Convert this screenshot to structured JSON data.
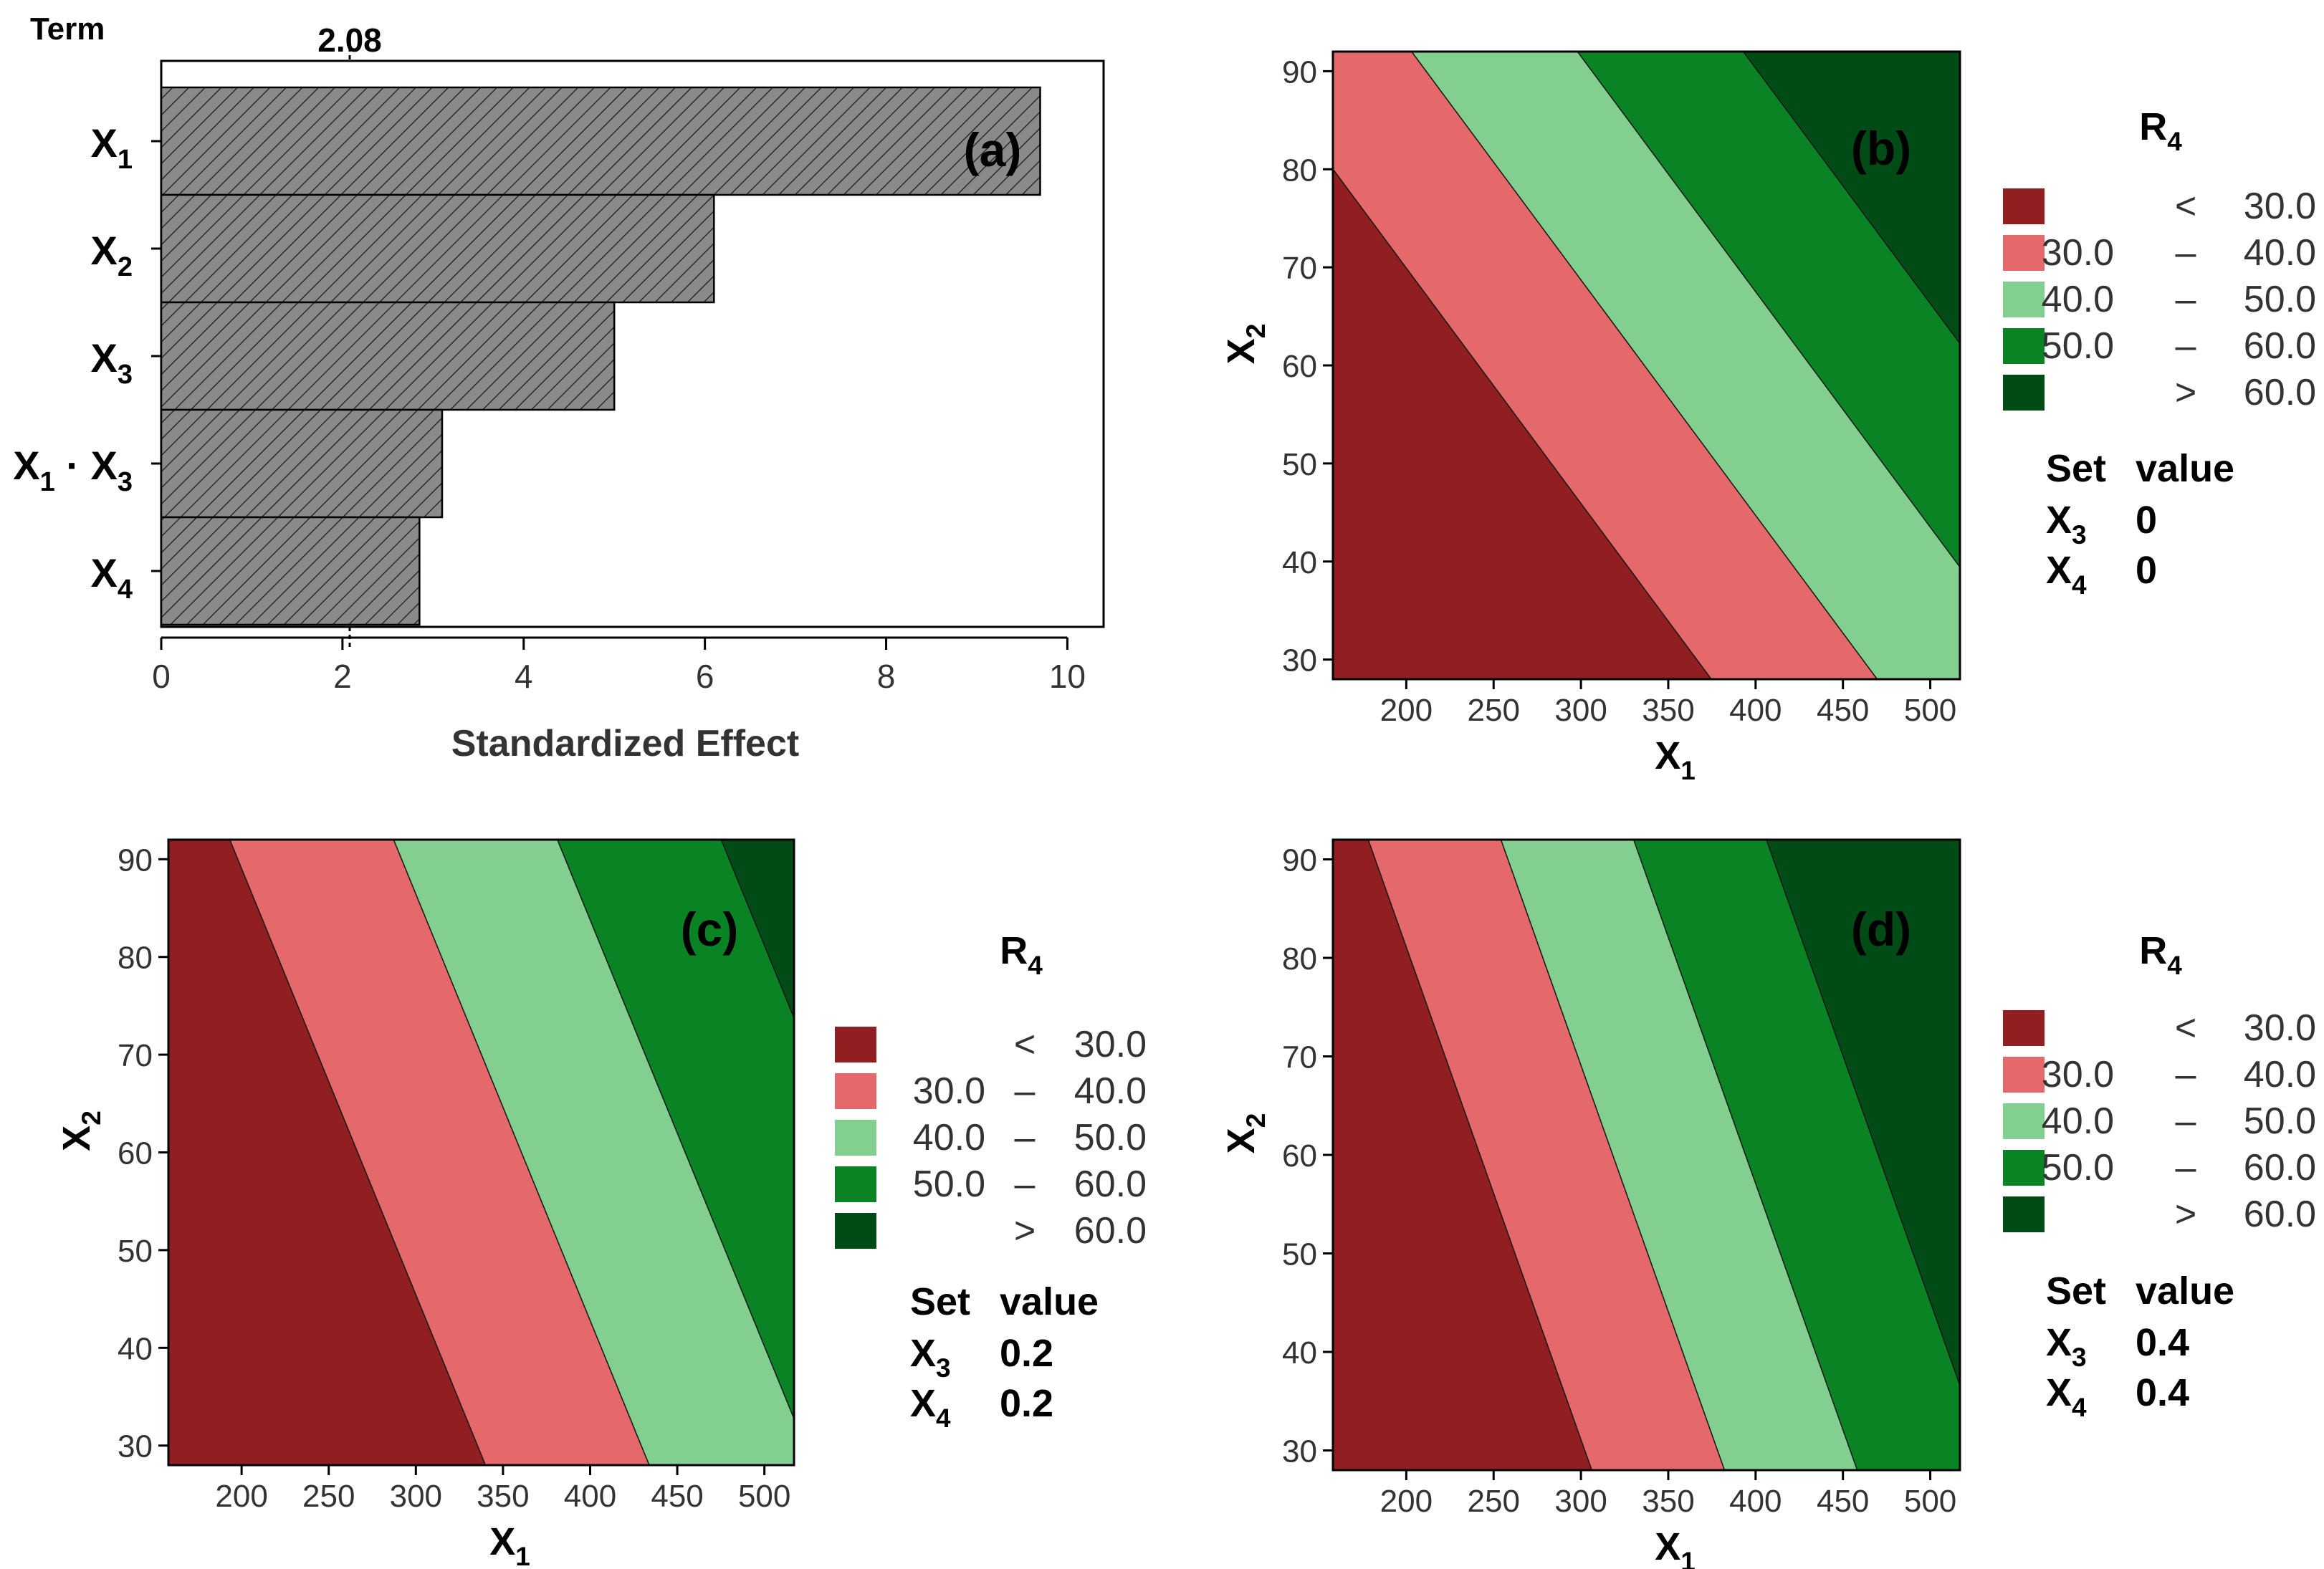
{
  "colors": {
    "lt30": "#911e21",
    "r30_40": "#e5696b",
    "r40_50": "#82cf8f",
    "r50_60": "#0a8324",
    "gt60": "#004b16",
    "bar_fill": "#8a8a8a",
    "axis_text": "#333333"
  },
  "chart_data": [
    {
      "type": "bar",
      "orientation": "horizontal",
      "panel": "(a)",
      "y_title": "Term",
      "xlabel": "Standardized Effect",
      "reference_line": 2.08,
      "reference_label": "2.08",
      "categories": [
        {
          "main": "X",
          "sub": "1"
        },
        {
          "main": "X",
          "sub": "2"
        },
        {
          "main": "X",
          "sub": "3"
        },
        {
          "main": "X",
          "sub": "1",
          "mid": " · X",
          "sub2": "3"
        },
        {
          "main": "X",
          "sub": "4"
        }
      ],
      "values": [
        9.7,
        6.1,
        5.0,
        3.1,
        2.85
      ],
      "xlim": [
        0,
        10.4
      ],
      "xticks": [
        0,
        2,
        4,
        6,
        8,
        10
      ]
    },
    {
      "type": "contour",
      "panel": "(b)",
      "xlabel": {
        "main": "X",
        "sub": "1"
      },
      "ylabel": {
        "main": "X",
        "sub": "2"
      },
      "xlim": [
        158,
        517
      ],
      "ylim": [
        28,
        92
      ],
      "xticks": [
        200,
        250,
        300,
        350,
        400,
        450,
        500
      ],
      "yticks": [
        30,
        40,
        50,
        60,
        70,
        80,
        90
      ],
      "model": {
        "c": -21.733,
        "a": 0.1053,
        "b": 0.4386
      },
      "legend": {
        "title_main": "R",
        "title_sub": "4",
        "items": [
          {
            "lo": "",
            "op": "<",
            "hi": "30.0",
            "color_key": "lt30"
          },
          {
            "lo": "30.0",
            "op": "–",
            "hi": "40.0",
            "color_key": "r30_40"
          },
          {
            "lo": "40.0",
            "op": "–",
            "hi": "50.0",
            "color_key": "r40_50"
          },
          {
            "lo": "50.0",
            "op": "–",
            "hi": "60.0",
            "color_key": "r50_60"
          },
          {
            "lo": "",
            "op": ">",
            "hi": "60.0",
            "color_key": "gt60"
          }
        ]
      },
      "set_values": {
        "head1": "Set",
        "head2": "value",
        "rows": [
          {
            "main": "X",
            "sub": "3",
            "value": "0"
          },
          {
            "main": "X",
            "sub": "4",
            "value": "0"
          }
        ]
      }
    },
    {
      "type": "contour",
      "panel": "(c)",
      "xlabel": {
        "main": "X",
        "sub": "1"
      },
      "ylabel": {
        "main": "X",
        "sub": "2"
      },
      "xlim": [
        158,
        517
      ],
      "ylim": [
        28,
        92
      ],
      "xticks": [
        200,
        250,
        300,
        350,
        400,
        450,
        500
      ],
      "yticks": [
        30,
        40,
        50,
        60,
        70,
        80,
        90
      ],
      "model": {
        "c": -13.0,
        "a": 0.1064,
        "b": 0.2439
      },
      "legend": {
        "title_main": "R",
        "title_sub": "4",
        "items": [
          {
            "lo": "",
            "op": "<",
            "hi": "30.0",
            "color_key": "lt30"
          },
          {
            "lo": "30.0",
            "op": "–",
            "hi": "40.0",
            "color_key": "r30_40"
          },
          {
            "lo": "40.0",
            "op": "–",
            "hi": "50.0",
            "color_key": "r40_50"
          },
          {
            "lo": "50.0",
            "op": "–",
            "hi": "60.0",
            "color_key": "r50_60"
          },
          {
            "lo": "",
            "op": ">",
            "hi": "60.0",
            "color_key": "gt60"
          }
        ]
      },
      "set_values": {
        "head1": "Set",
        "head2": "value",
        "rows": [
          {
            "main": "X",
            "sub": "3",
            "value": "0.2"
          },
          {
            "main": "X",
            "sub": "4",
            "value": "0.2"
          }
        ]
      }
    },
    {
      "type": "contour",
      "panel": "(d)",
      "xlabel": {
        "main": "X",
        "sub": "1"
      },
      "ylabel": {
        "main": "X",
        "sub": "2"
      },
      "xlim": [
        158,
        517
      ],
      "ylim": [
        28,
        92
      ],
      "xticks": [
        200,
        250,
        300,
        350,
        400,
        450,
        500
      ],
      "yticks": [
        30,
        40,
        50,
        60,
        70,
        80,
        90
      ],
      "model": {
        "c": -17.67,
        "a": 0.1316,
        "b": 0.2632
      },
      "legend": {
        "title_main": "R",
        "title_sub": "4",
        "items": [
          {
            "lo": "",
            "op": "<",
            "hi": "30.0",
            "color_key": "lt30"
          },
          {
            "lo": "30.0",
            "op": "–",
            "hi": "40.0",
            "color_key": "r30_40"
          },
          {
            "lo": "40.0",
            "op": "–",
            "hi": "50.0",
            "color_key": "r40_50"
          },
          {
            "lo": "50.0",
            "op": "–",
            "hi": "60.0",
            "color_key": "r50_60"
          },
          {
            "lo": "",
            "op": ">",
            "hi": "60.0",
            "color_key": "gt60"
          }
        ]
      },
      "set_values": {
        "head1": "Set",
        "head2": "value",
        "rows": [
          {
            "main": "X",
            "sub": "3",
            "value": "0.4"
          },
          {
            "main": "X",
            "sub": "4",
            "value": "0.4"
          }
        ]
      }
    }
  ]
}
